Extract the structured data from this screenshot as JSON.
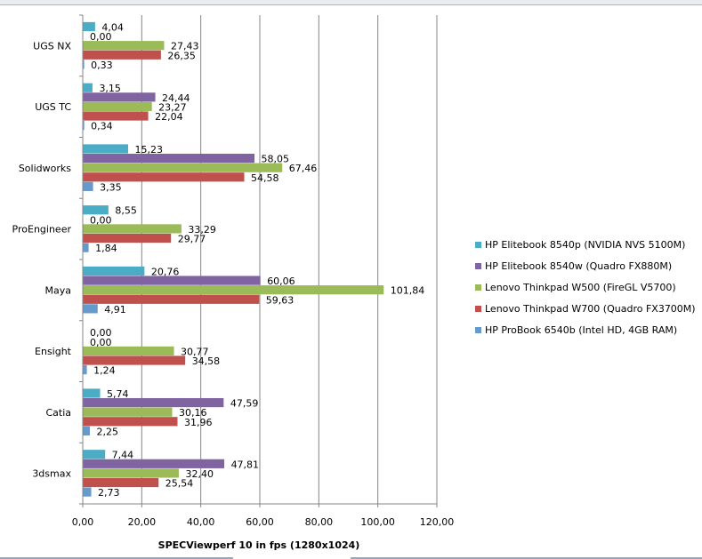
{
  "chart_data": {
    "type": "bar",
    "orientation": "horizontal",
    "title": "",
    "xlabel": "SPECViewperf 10 in fps (1280x1024)",
    "ylabel": "",
    "xlim": [
      0,
      120
    ],
    "xticks": [
      0,
      20,
      40,
      60,
      80,
      100,
      120
    ],
    "xtick_labels": [
      "0,00",
      "20,00",
      "40,00",
      "60,00",
      "80,00",
      "100,00",
      "120,00"
    ],
    "grid": "vertical major gridlines",
    "legend_position": "right",
    "categories": [
      "UGS NX",
      "UGS TC",
      "Solidworks",
      "ProEngineer",
      "Maya",
      "Ensight",
      "Catia",
      "3dsmax"
    ],
    "series": [
      {
        "name": "HP Elitebook 8540p (NVIDIA  NVS 5100M)",
        "color": "#4bacc6",
        "values": [
          4.04,
          3.15,
          15.23,
          8.55,
          20.76,
          0.0,
          5.74,
          7.44
        ],
        "labels": [
          "4,04",
          "3,15",
          "15,23",
          "8,55",
          "20,76",
          "0,00",
          "5,74",
          "7,44"
        ]
      },
      {
        "name": "HP Elitebook 8540w (Quadro FX880M)",
        "color": "#8064a2",
        "values": [
          0.0,
          24.44,
          58.05,
          0.0,
          60.06,
          0.0,
          47.59,
          47.81
        ],
        "labels": [
          "0,00",
          "24,44",
          "58,05",
          "0,00",
          "60,06",
          "0,00",
          "47,59",
          "47,81"
        ]
      },
      {
        "name": "Lenovo Thinkpad W500 (FireGL V5700)",
        "color": "#9bbb59",
        "values": [
          27.43,
          23.27,
          67.46,
          33.29,
          101.84,
          30.77,
          30.16,
          32.4
        ],
        "labels": [
          "27,43",
          "23,27",
          "67,46",
          "33,29",
          "101,84",
          "30,77",
          "30,16",
          "32,40"
        ]
      },
      {
        "name": "Lenovo Thinkpad W700 (Quadro FX3700M)",
        "color": "#c0504d",
        "values": [
          26.35,
          22.04,
          54.58,
          29.77,
          59.63,
          34.58,
          31.96,
          25.54
        ],
        "labels": [
          "26,35",
          "22,04",
          "54,58",
          "29,77",
          "59,63",
          "34,58",
          "31,96",
          "25,54"
        ]
      },
      {
        "name": "HP ProBook 6540b (Intel HD, 4GB RAM)",
        "color": "#6699cc",
        "values": [
          0.33,
          0.34,
          3.35,
          1.84,
          4.91,
          1.24,
          2.25,
          2.73
        ],
        "labels": [
          "0,33",
          "0,34",
          "3,35",
          "1,84",
          "4,91",
          "1,24",
          "2,25",
          "2,73"
        ]
      }
    ]
  }
}
